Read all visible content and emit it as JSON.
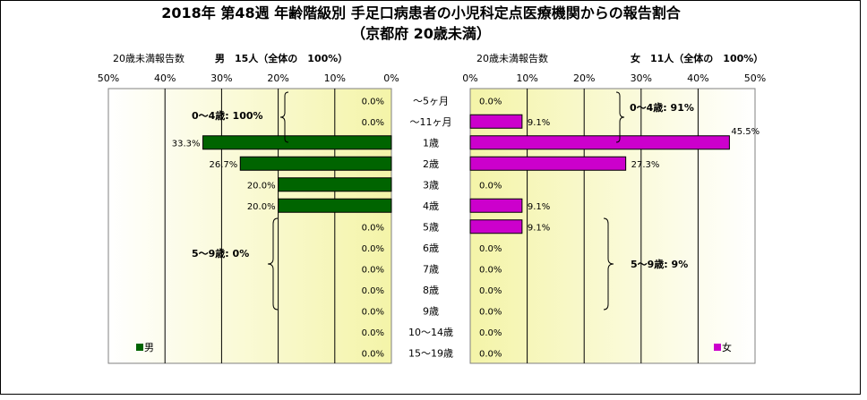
{
  "title_line1": "2018年 第48週 年齢階級別 手足口病患者の小児科定点医療機関からの報告割合",
  "title_line2": "（京都府 20歳未満）",
  "chart_data": [
    {
      "type": "bar",
      "orientation": "horizontal",
      "direction": "right-to-left",
      "subtitle_left": "20歳未満報告数",
      "subtitle_right": "男　15人（全体の　100%）",
      "series": [
        {
          "name": "男",
          "color": "#006400"
        }
      ],
      "legend": "男",
      "legend_position": "bottom-left",
      "categories": [
        "～5ヶ月",
        "～11ヶ月",
        "1歳",
        "2歳",
        "3歳",
        "4歳",
        "5歳",
        "6歳",
        "7歳",
        "8歳",
        "9歳",
        "10～14歳",
        "15～19歳"
      ],
      "values": [
        0.0,
        0.0,
        33.3,
        26.7,
        20.0,
        20.0,
        0.0,
        0.0,
        0.0,
        0.0,
        0.0,
        0.0,
        0.0
      ],
      "value_labels": [
        "0.0%",
        "0.0%",
        "33.3%",
        "26.7%",
        "20.0%",
        "20.0%",
        "0.0%",
        "0.0%",
        "0.0%",
        "0.0%",
        "0.0%",
        "0.0%",
        "0.0%"
      ],
      "xlim": [
        0,
        50
      ],
      "x_ticks": [
        "50%",
        "40%",
        "30%",
        "20%",
        "10%",
        "0%"
      ],
      "annotations": [
        "0～4歳: 100%",
        "5～9歳: 0%"
      ]
    },
    {
      "type": "bar",
      "orientation": "horizontal",
      "direction": "left-to-right",
      "subtitle_left": "20歳未満報告数",
      "subtitle_right": "女　11人（全体の　100%）",
      "series": [
        {
          "name": "女",
          "color": "#cc00cc"
        }
      ],
      "legend": "女",
      "legend_position": "bottom-right",
      "categories": [
        "～5ヶ月",
        "～11ヶ月",
        "1歳",
        "2歳",
        "3歳",
        "4歳",
        "5歳",
        "6歳",
        "7歳",
        "8歳",
        "9歳",
        "10～14歳",
        "15～19歳"
      ],
      "values": [
        0.0,
        9.1,
        45.5,
        27.3,
        0.0,
        9.1,
        9.1,
        0.0,
        0.0,
        0.0,
        0.0,
        0.0,
        0.0
      ],
      "value_labels": [
        "0.0%",
        "9.1%",
        "45.5%",
        "27.3%",
        "0.0%",
        "9.1%",
        "9.1%",
        "0.0%",
        "0.0%",
        "0.0%",
        "0.0%",
        "0.0%",
        "0.0%"
      ],
      "xlim": [
        0,
        50
      ],
      "x_ticks": [
        "0%",
        "10%",
        "20%",
        "30%",
        "40%",
        "50%"
      ],
      "annotations": [
        "0～4歳: 91%",
        "5～9歳: 9%"
      ]
    }
  ]
}
